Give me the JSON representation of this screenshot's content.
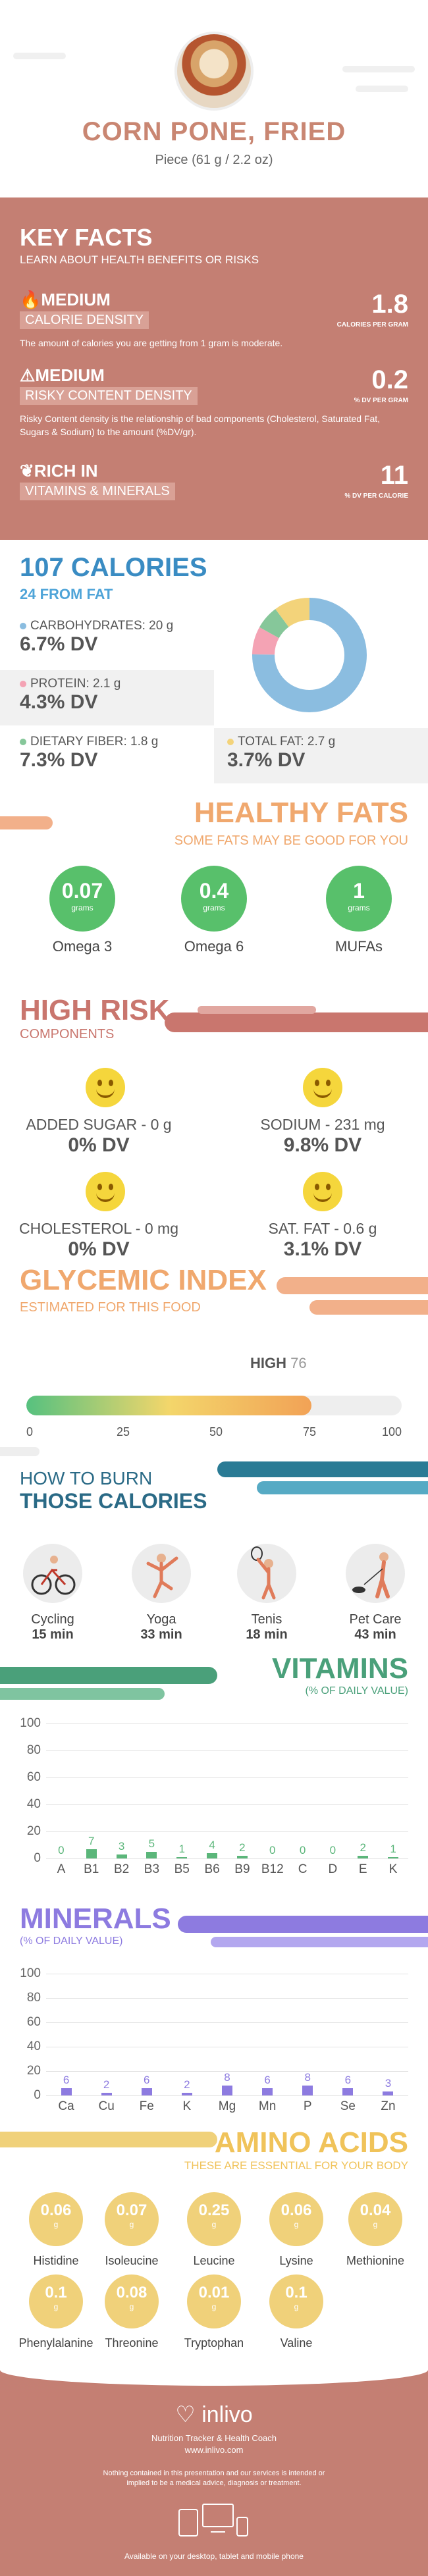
{
  "header": {
    "title": "CORN PONE, FRIED",
    "serving": "Piece (61 g / 2.2 oz)"
  },
  "key_facts": {
    "title": "KEY FACTS",
    "subtitle": "LEARN ABOUT HEALTH BENEFITS OR RISKS",
    "calorie_density": {
      "level": "MEDIUM",
      "label": "CALORIE DENSITY",
      "value": "1.8",
      "unit": "CALORIES PER GRAM",
      "desc": "The amount of calories you are getting from 1 gram is moderate."
    },
    "risky_content": {
      "level": "MEDIUM",
      "label": "RISKY CONTENT DENSITY",
      "value": "0.2",
      "unit": "% DV PER GRAM",
      "desc": "Risky Content density is the relationship of bad components (Cholesterol, Saturated Fat, Sugars & Sodium) to the amount (%DV/gr)."
    },
    "rich_in": {
      "level": "RICH IN",
      "label": "VITAMINS & MINERALS",
      "value": "11",
      "unit": "% DV PER CALORIE"
    }
  },
  "calories": {
    "title": "107 CALORIES",
    "from_fat": "24 FROM FAT",
    "carbs": {
      "label": "CARBOHYDRATES: 20 g",
      "dv": "6.7% DV",
      "color": "#8bbde0"
    },
    "protein": {
      "label": "PROTEIN: 2.1 g",
      "dv": "4.3% DV",
      "color": "#f4a3b4"
    },
    "fiber": {
      "label": "DIETARY FIBER: 1.8 g",
      "dv": "7.3% DV",
      "color": "#86c79a"
    },
    "fat": {
      "label": "TOTAL FAT: 2.7 g",
      "dv": "3.7% DV",
      "color": "#f3d37a"
    }
  },
  "chart_data": [
    {
      "type": "pie",
      "title": "",
      "categories": [
        "Carbohydrates",
        "Protein",
        "Dietary Fiber",
        "Total Fat"
      ],
      "values": [
        20,
        2.1,
        1.8,
        2.7
      ],
      "colors": [
        "#8bbde0",
        "#f4a3b4",
        "#86c79a",
        "#f3d37a"
      ]
    },
    {
      "type": "bar",
      "title": "VITAMINS",
      "categories": [
        "A",
        "B1",
        "B2",
        "B3",
        "B5",
        "B6",
        "B9",
        "B12",
        "C",
        "D",
        "E",
        "K"
      ],
      "values": [
        0,
        7,
        3,
        5,
        1,
        4,
        2,
        0,
        0,
        0,
        2,
        1
      ],
      "ylim": [
        0,
        100
      ]
    },
    {
      "type": "bar",
      "title": "MINERALS",
      "categories": [
        "Ca",
        "Cu",
        "Fe",
        "K",
        "Mg",
        "Mn",
        "P",
        "Se",
        "Zn"
      ],
      "values": [
        6,
        2,
        6,
        2,
        8,
        6,
        8,
        6,
        3
      ],
      "ylim": [
        0,
        100
      ]
    }
  ],
  "fats": {
    "title": "HEALTHY FATS",
    "subtitle": "SOME FATS MAY BE GOOD FOR YOU",
    "items": [
      {
        "value": "0.07",
        "unit": "grams",
        "name": "Omega 3"
      },
      {
        "value": "0.4",
        "unit": "grams",
        "name": "Omega 6"
      },
      {
        "value": "1",
        "unit": "grams",
        "name": "MUFAs"
      }
    ]
  },
  "risk": {
    "title": "HIGH RISK",
    "subtitle": "COMPONENTS",
    "items": [
      {
        "label": "ADDED SUGAR - 0 g",
        "dv": "0% DV"
      },
      {
        "label": "SODIUM - 231 mg",
        "dv": "9.8% DV"
      },
      {
        "label": "CHOLESTEROL - 0 mg",
        "dv": "0% DV"
      },
      {
        "label": "SAT. FAT - 0.6 g",
        "dv": "3.1% DV"
      }
    ]
  },
  "glycemic": {
    "title": "GLYCEMIC INDEX",
    "subtitle": "ESTIMATED FOR THIS FOOD",
    "level": "HIGH",
    "value": "76",
    "fill_fraction": 0.76,
    "ticks": [
      "0",
      "25",
      "50",
      "75",
      "100"
    ]
  },
  "burn": {
    "title1": "HOW TO BURN",
    "title2": "THOSE CALORIES",
    "items": [
      {
        "name": "Cycling",
        "min": "15 min",
        "icon": "cycling-icon"
      },
      {
        "name": "Yoga",
        "min": "33 min",
        "icon": "yoga-icon"
      },
      {
        "name": "Tenis",
        "min": "18 min",
        "icon": "tennis-icon"
      },
      {
        "name": "Pet Care",
        "min": "43 min",
        "icon": "pet-care-icon"
      }
    ]
  },
  "vitamins": {
    "title": "VITAMINS",
    "subtitle": "(% OF DAILY VALUE)",
    "yticks": [
      "100",
      "80",
      "60",
      "40",
      "20",
      "0"
    ],
    "color": "#5bb67a"
  },
  "minerals": {
    "title": "MINERALS",
    "subtitle": "(% OF DAILY VALUE)",
    "yticks": [
      "100",
      "80",
      "60",
      "40",
      "20",
      "0"
    ],
    "color": "#8d7be0"
  },
  "amino": {
    "title": "AMINO ACIDS",
    "subtitle": "THESE ARE ESSENTIAL FOR YOUR BODY",
    "items": [
      {
        "value": "0.06",
        "unit": "g",
        "name": "Histidine"
      },
      {
        "value": "0.07",
        "unit": "g",
        "name": "Isoleucine"
      },
      {
        "value": "0.25",
        "unit": "g",
        "name": "Leucine"
      },
      {
        "value": "0.06",
        "unit": "g",
        "name": "Lysine"
      },
      {
        "value": "0.04",
        "unit": "g",
        "name": "Methionine"
      },
      {
        "value": "0.1",
        "unit": "g",
        "name": "Phenylalanine"
      },
      {
        "value": "0.08",
        "unit": "g",
        "name": "Threonine"
      },
      {
        "value": "0.01",
        "unit": "g",
        "name": "Tryptophan"
      },
      {
        "value": "0.1",
        "unit": "g",
        "name": "Valine"
      }
    ]
  },
  "footer": {
    "brand": "inlivo",
    "tagline": "Nutrition Tracker & Health Coach",
    "url": "www.inlivo.com",
    "disclaimer": "Nothing contained in this presentation and our services is intended or implied to be a medical advice, diagnosis or treatment.",
    "available": "Available on your desktop, tablet and mobile phone"
  }
}
